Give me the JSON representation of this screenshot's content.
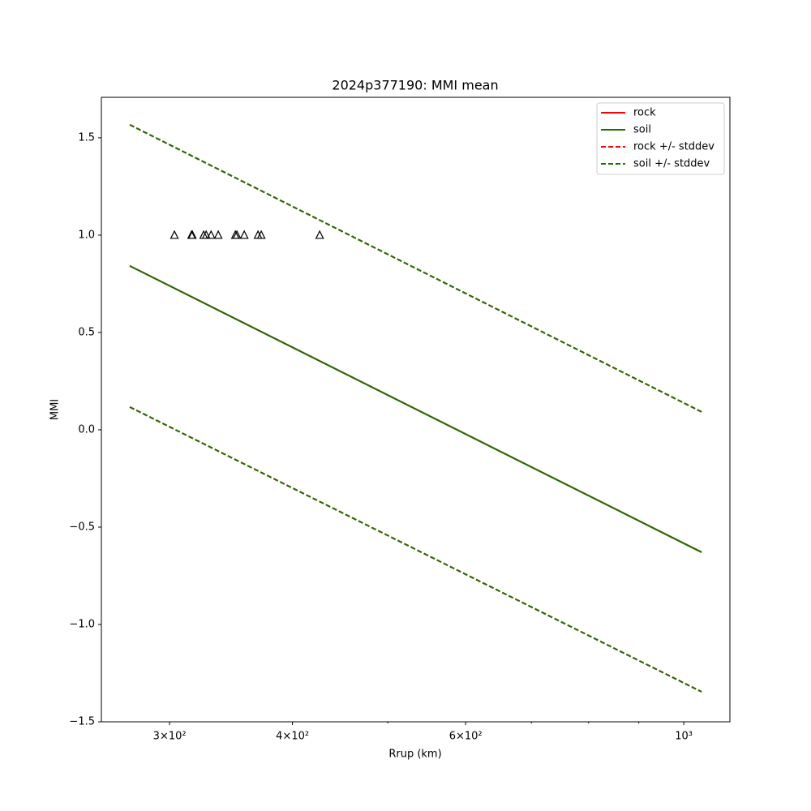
{
  "chart_data": {
    "type": "line",
    "title": "2024p377190: MMI mean",
    "x_label": "Rrup (km)",
    "y_label": "MMI",
    "xscale": "log",
    "xlim": [
      255.7,
      1114
    ],
    "ylim": [
      -1.5,
      1.708
    ],
    "xticks": [
      {
        "value": 300,
        "label": "3×10²"
      },
      {
        "value": 400,
        "label": "4×10²"
      },
      {
        "value": 600,
        "label": "6×10²"
      },
      {
        "value": 1000,
        "label": "10³"
      }
    ],
    "xminor": [
      500,
      700,
      800,
      900
    ],
    "yticks": [
      {
        "value": -1.5,
        "label": "−1.5"
      },
      {
        "value": -1.0,
        "label": "−1.0"
      },
      {
        "value": -0.5,
        "label": "−0.5"
      },
      {
        "value": 0.0,
        "label": "0.0"
      },
      0.5,
      {
        "value": 1.0,
        "label": "1.0"
      },
      1.5
    ],
    "legend": "upper right",
    "series": [
      {
        "name": "rock",
        "color": "#ff0000",
        "dash": false,
        "x": [
          273.3,
          1042.6
        ],
        "values": [
          0.842,
          -0.629
        ]
      },
      {
        "name": "soil",
        "color": "#1f6f00",
        "dash": false,
        "x": [
          273.3,
          1042.6
        ],
        "values": [
          0.842,
          -0.629
        ]
      },
      {
        "name": "rock +/- stddev",
        "color": "#ff0000",
        "dash": true,
        "x": [
          273.3,
          1042.6
        ],
        "values": [
          1.567,
          0.092
        ],
        "lower": [
          0.117,
          -1.346
        ]
      },
      {
        "name": "soil +/- stddev",
        "color": "#1f6f00",
        "dash": true,
        "x": [
          273.3,
          1042.6
        ],
        "values": [
          1.567,
          0.092
        ],
        "lower": [
          0.117,
          -1.346
        ]
      }
    ],
    "points": {
      "marker": "triangle",
      "color": "#000000",
      "x": [
        303.4,
        315.8,
        316.4,
        324.9,
        326.8,
        330.6,
        336.2,
        349.9,
        351.2,
        357.3,
        369.0,
        371.8,
        426.3
      ],
      "values": [
        1.0,
        1.0,
        1.0,
        1.0,
        1.0,
        1.0,
        1.0,
        1.0,
        1.0,
        1.0,
        1.0,
        1.0,
        1.0
      ]
    }
  }
}
